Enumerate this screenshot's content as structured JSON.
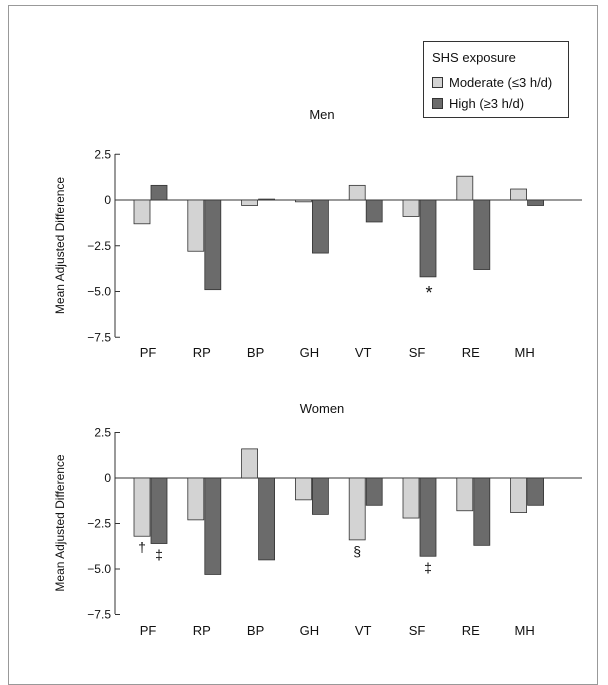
{
  "legend": {
    "title": "SHS exposure",
    "items": [
      {
        "label": "Moderate (≤3 h/d)",
        "color": "#d3d3d3"
      },
      {
        "label": "High (≥3 h/d)",
        "color": "#6b6b6b"
      }
    ]
  },
  "chart_data": [
    {
      "type": "bar",
      "title": "Men",
      "ylabel": "Mean Adjusted Difference",
      "ylim": [
        -7.5,
        2.5
      ],
      "yticks": [
        "2.5",
        "0",
        "−2.5",
        "−5.0",
        "−7.5"
      ],
      "categories": [
        "PF",
        "RP",
        "BP",
        "GH",
        "VT",
        "SF",
        "RE",
        "MH"
      ],
      "series": [
        {
          "name": "Moderate (≤3 h/d)",
          "values": [
            -1.3,
            -2.8,
            -0.3,
            -0.1,
            0.8,
            -0.9,
            1.3,
            0.6
          ]
        },
        {
          "name": "High (≥3 h/d)",
          "values": [
            0.8,
            -4.9,
            0.05,
            -2.9,
            -1.2,
            -4.2,
            -3.8,
            -0.3
          ]
        }
      ],
      "annotations": [
        {
          "category": "SF",
          "series": 1,
          "text": "*"
        }
      ]
    },
    {
      "type": "bar",
      "title": "Women",
      "ylabel": "Mean Adjusted Difference",
      "ylim": [
        -7.5,
        2.5
      ],
      "yticks": [
        "2.5",
        "0",
        "−2.5",
        "−5.0",
        "−7.5"
      ],
      "categories": [
        "PF",
        "RP",
        "BP",
        "GH",
        "VT",
        "SF",
        "RE",
        "MH"
      ],
      "series": [
        {
          "name": "Moderate (≤3 h/d)",
          "values": [
            -3.2,
            -2.3,
            1.6,
            -1.2,
            -3.4,
            -2.2,
            -1.8,
            -1.9
          ]
        },
        {
          "name": "High (≥3 h/d)",
          "values": [
            -3.6,
            -5.3,
            -4.5,
            -2.0,
            -1.5,
            -4.3,
            -3.7,
            -1.5
          ]
        }
      ],
      "annotations": [
        {
          "category": "PF",
          "series": 0,
          "text": "†"
        },
        {
          "category": "PF",
          "series": 1,
          "text": "‡"
        },
        {
          "category": "VT",
          "series": 0,
          "text": "§"
        },
        {
          "category": "SF",
          "series": 1,
          "text": "‡"
        }
      ]
    }
  ]
}
